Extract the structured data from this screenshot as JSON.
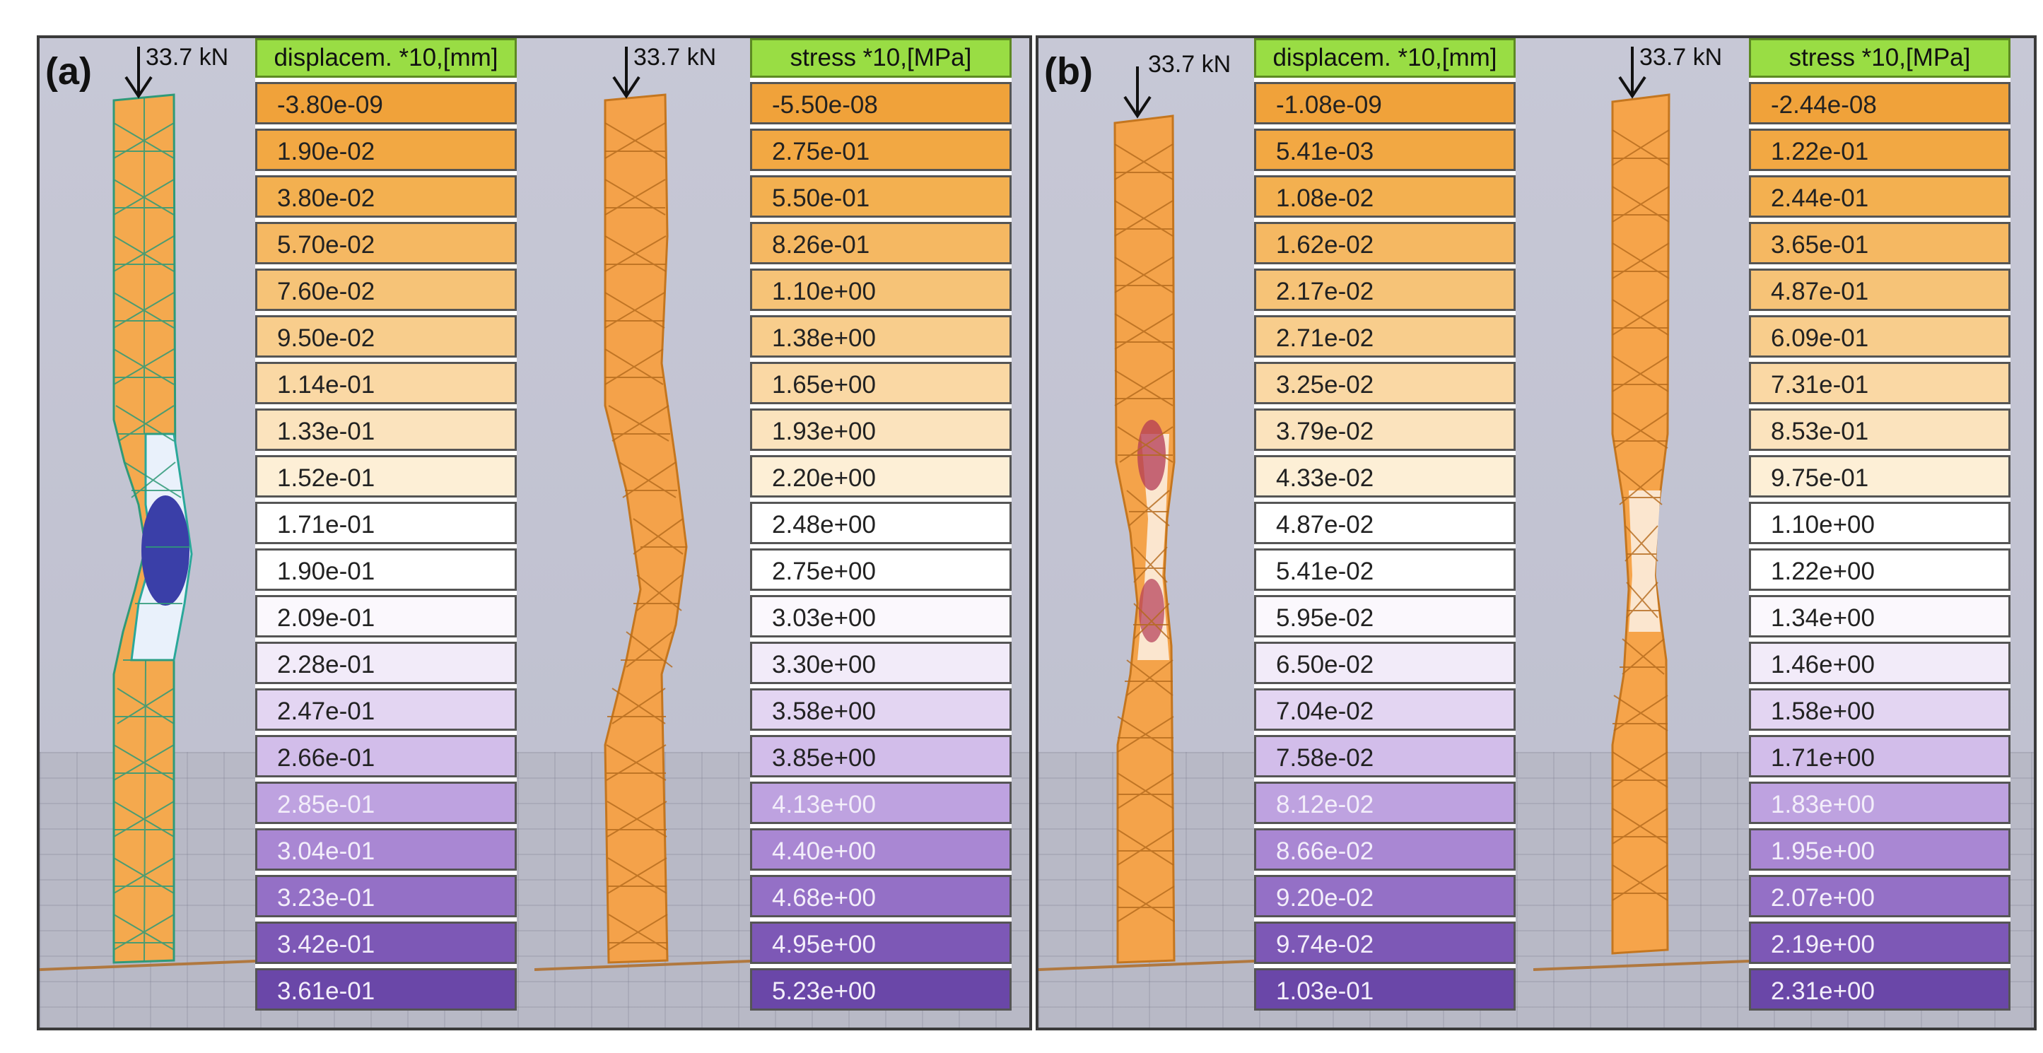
{
  "panel_a": {
    "label": "(a)",
    "displacement": {
      "load": "33.7 kN",
      "title": "displacem. *10,[mm]",
      "values": [
        "-3.80e-09",
        "1.90e-02",
        "3.80e-02",
        "5.70e-02",
        "7.60e-02",
        "9.50e-02",
        "1.14e-01",
        "1.33e-01",
        "1.52e-01",
        "1.71e-01",
        "1.90e-01",
        "2.09e-01",
        "2.28e-01",
        "2.47e-01",
        "2.66e-01",
        "2.85e-01",
        "3.04e-01",
        "3.23e-01",
        "3.42e-01",
        "3.61e-01"
      ]
    },
    "stress": {
      "load": "33.7 kN",
      "title": "stress *10,[MPa]",
      "values": [
        "-5.50e-08",
        "2.75e-01",
        "5.50e-01",
        "8.26e-01",
        "1.10e+00",
        "1.38e+00",
        "1.65e+00",
        "1.93e+00",
        "2.20e+00",
        "2.48e+00",
        "2.75e+00",
        "3.03e+00",
        "3.30e+00",
        "3.58e+00",
        "3.85e+00",
        "4.13e+00",
        "4.40e+00",
        "4.68e+00",
        "4.95e+00",
        "5.23e+00"
      ]
    }
  },
  "panel_b": {
    "label": "(b)",
    "displacement": {
      "load": "33.7 kN",
      "title": "displacem. *10,[mm]",
      "values": [
        "-1.08e-09",
        "5.41e-03",
        "1.08e-02",
        "1.62e-02",
        "2.17e-02",
        "2.71e-02",
        "3.25e-02",
        "3.79e-02",
        "4.33e-02",
        "4.87e-02",
        "5.41e-02",
        "5.95e-02",
        "6.50e-02",
        "7.04e-02",
        "7.58e-02",
        "8.12e-02",
        "8.66e-02",
        "9.20e-02",
        "9.74e-02",
        "1.03e-01"
      ]
    },
    "stress": {
      "load": "33.7 kN",
      "title": "stress *10,[MPa]",
      "values": [
        "-2.44e-08",
        "1.22e-01",
        "2.44e-01",
        "3.65e-01",
        "4.87e-01",
        "6.09e-01",
        "7.31e-01",
        "8.53e-01",
        "9.75e-01",
        "1.10e+00",
        "1.22e+00",
        "1.34e+00",
        "1.46e+00",
        "1.58e+00",
        "1.71e+00",
        "1.83e+00",
        "1.95e+00",
        "2.07e+00",
        "2.19e+00",
        "2.31e+00"
      ]
    }
  },
  "colors": {
    "legend_scale": [
      "#f0a23a",
      "#f2a843",
      "#f3b050",
      "#f5b862",
      "#f6c377",
      "#f8cd8c",
      "#fad8a4",
      "#fbe3bd",
      "#fdefd6",
      "#ffffff",
      "#ffffff",
      "#fbf8fd",
      "#f2ebf9",
      "#e3d5f2",
      "#d2bdea",
      "#bea2e0",
      "#a987d3",
      "#9470c6",
      "#7d58b6",
      "#6a47a8"
    ],
    "title_bar": "#99dd44",
    "column_orange": "#f3a64a",
    "column_blue": "#3a3fa8"
  }
}
